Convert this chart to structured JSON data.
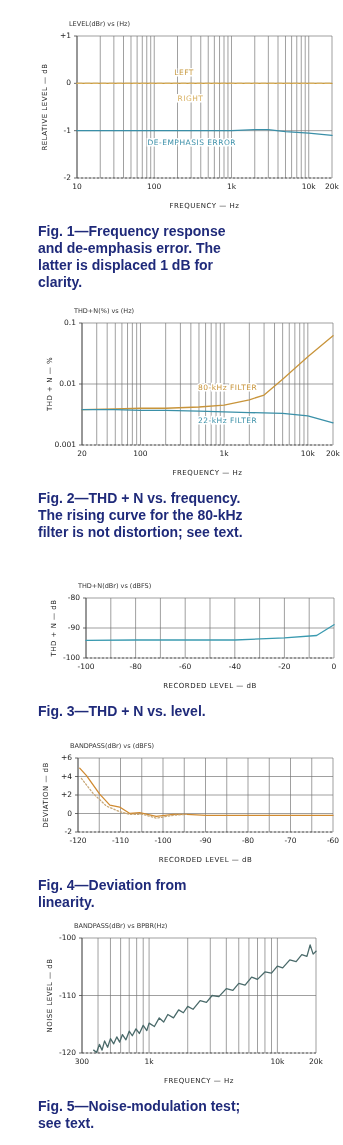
{
  "chart_data": [
    {
      "type": "line",
      "title": "Fig. 1—Frequency response and de-emphasis error. The latter is displaced 1 dB for clarity.",
      "subtitle": "LEVEL(dBr) vs (Hz)",
      "xlabel": "FREQUENCY — Hz",
      "ylabel": "RELATIVE LEVEL — dB",
      "log": "x",
      "grid": true,
      "xlim": [
        10,
        20000
      ],
      "xticks": [
        10,
        100,
        {
          "value": 1000,
          "label": "1k"
        },
        {
          "value": 10000,
          "label": "10k"
        },
        {
          "value": 20000,
          "label": "20k"
        }
      ],
      "ylim": [
        -2,
        1
      ],
      "yticks": [
        -2,
        -1,
        0,
        {
          "value": 1,
          "label": "+1"
        }
      ],
      "series": [
        {
          "name": "LEFT",
          "color": "#c89a40",
          "x": [
            10,
            20000
          ],
          "values": [
            0,
            0
          ]
        },
        {
          "name": "RIGHT",
          "color": "#d8b060",
          "line_style": "dashed",
          "x": [
            10,
            20000
          ],
          "values": [
            0,
            0
          ]
        },
        {
          "name": "DE-EMPHASIS ERROR",
          "color": "#3a8fa8",
          "x": [
            10,
            100,
            1000,
            2000,
            3000,
            5000,
            10000,
            20000
          ],
          "values": [
            -1,
            -1,
            -1,
            -0.98,
            -0.98,
            -1.02,
            -1.05,
            -1.1
          ]
        }
      ]
    },
    {
      "type": "line",
      "title": "Fig. 2—THD + N vs. frequency. The rising curve for the 80-kHz filter is not distortion; see text.",
      "subtitle": "THD+N(%) vs (Hz)",
      "xlabel": "FREQUENCY — Hz",
      "ylabel": "THD + N — %",
      "log": "xy",
      "grid": true,
      "xlim": [
        20,
        20000
      ],
      "xticks": [
        20,
        100,
        {
          "value": 1000,
          "label": "1k"
        },
        {
          "value": 10000,
          "label": "10k"
        },
        {
          "value": 20000,
          "label": "20k"
        }
      ],
      "ylim": [
        0.001,
        0.1
      ],
      "yticks": [
        0.001,
        0.01,
        0.1
      ],
      "series": [
        {
          "name": "80-kHz FILTER",
          "color": "#c8943a",
          "x": [
            20,
            50,
            100,
            200,
            500,
            1000,
            2000,
            3000,
            5000,
            10000,
            20000
          ],
          "values": [
            0.0038,
            0.0039,
            0.004,
            0.004,
            0.0042,
            0.0045,
            0.0055,
            0.0066,
            0.012,
            0.028,
            0.062
          ]
        },
        {
          "name": "22-kHz FILTER",
          "color": "#3a90a8",
          "x": [
            20,
            50,
            100,
            200,
            500,
            1000,
            2000,
            5000,
            10000,
            20000
          ],
          "values": [
            0.0038,
            0.0038,
            0.0037,
            0.0037,
            0.0036,
            0.0035,
            0.0034,
            0.0033,
            0.003,
            0.0023
          ]
        }
      ]
    },
    {
      "type": "line",
      "title": "Fig. 3—THD + N vs. level.",
      "subtitle": "THD+N(dBr) vs (dBFS)",
      "xlabel": "RECORDED LEVEL — dB",
      "ylabel": "THD + N — dB",
      "grid": true,
      "xlim": [
        -100,
        0
      ],
      "xticks": [
        -100,
        -80,
        -60,
        -40,
        -20,
        0
      ],
      "ylim": [
        -100,
        -80
      ],
      "yticks": [
        -100,
        -90,
        -80
      ],
      "series": [
        {
          "color": "#3a9ab0",
          "x": [
            -100,
            -80,
            -60,
            -40,
            -20,
            -7,
            0
          ],
          "values": [
            -94.1,
            -94,
            -94,
            -94,
            -93.3,
            -92.5,
            -88.9
          ]
        }
      ]
    },
    {
      "type": "line",
      "title": "Fig. 4—Deviation from linearity.",
      "subtitle": "BANDPASS(dBr) vs (dBFS)",
      "xlabel": "RECORDED LEVEL — dB",
      "ylabel": "DEVIATION — dB",
      "grid": true,
      "xlim": [
        -120,
        -60
      ],
      "xticks": [
        -120,
        -110,
        -100,
        -90,
        -80,
        -70,
        -60
      ],
      "ylim": [
        -2,
        6
      ],
      "yticks": [
        -2,
        0,
        {
          "value": 2,
          "label": "+2"
        },
        {
          "value": 4,
          "label": "+4"
        },
        {
          "value": 6,
          "label": "+6"
        }
      ],
      "series": [
        {
          "color": "#d08a30",
          "x": [
            -119.6,
            -118,
            -114.9,
            -112.5,
            -110.2,
            -107.8,
            -105.5,
            -101.6,
            -97.6,
            -94.5,
            -89.8,
            -83.5,
            -60
          ],
          "values": [
            4.9,
            4.1,
            2.1,
            0.9,
            0.7,
            0,
            0.1,
            -0.3,
            -0.1,
            -0.1,
            -0.2,
            -0.2,
            -0.2
          ]
        },
        {
          "color": "#c8a878",
          "line_style": "dotted",
          "x": [
            -119.2,
            -116.5,
            -113.3,
            -110.2,
            -107.8,
            -104.7,
            -101.6,
            -97.6,
            -94.5
          ],
          "values": [
            3.8,
            2.2,
            0.8,
            0.2,
            -0.1,
            -0.1,
            -0.5,
            -0.2,
            -0.1
          ]
        }
      ]
    },
    {
      "type": "line",
      "title": "Fig. 5—Noise-modulation test; see text.",
      "subtitle": "BANDPASS(dBr) vs BPBR(Hz)",
      "xlabel": "FREQUENCY — Hz",
      "ylabel": "NOISE LEVEL — dB",
      "log": "x",
      "grid": true,
      "xlim": [
        300,
        20000
      ],
      "xticks": [
        300,
        {
          "value": 1000,
          "label": "1k"
        },
        {
          "value": 10000,
          "label": "10k"
        },
        {
          "value": 20000,
          "label": "20k"
        }
      ],
      "ylim": [
        -120,
        -100
      ],
      "yticks": [
        -120,
        -110,
        -100
      ],
      "series": [
        {
          "color": "#4a6a6a",
          "x": [
            370,
            390,
            410,
            430,
            450,
            475,
            500,
            530,
            560,
            590,
            620,
            660,
            700,
            740,
            790,
            840,
            900,
            960,
            1000,
            1100,
            1200,
            1300,
            1400,
            1550,
            1700,
            1850,
            2000,
            2200,
            2500,
            2800,
            3100,
            3500,
            4000,
            4500,
            5000,
            5600,
            6300,
            7000,
            8000,
            9000,
            10000,
            11000,
            12500,
            14000,
            15500,
            17000,
            18000,
            19000,
            20000
          ],
          "values": [
            -119.5,
            -119.9,
            -118.5,
            -119.5,
            -117.9,
            -119,
            -117.5,
            -118.4,
            -117.2,
            -118.1,
            -116.8,
            -117.7,
            -116.2,
            -117,
            -115.8,
            -116.6,
            -115.2,
            -116.1,
            -114.8,
            -115.4,
            -113.9,
            -114.6,
            -113.3,
            -113.9,
            -112.5,
            -113,
            -111.9,
            -112.4,
            -110.9,
            -111.2,
            -110,
            -110.2,
            -108.8,
            -109.1,
            -107.9,
            -108.2,
            -106.8,
            -107.2,
            -105.9,
            -106.1,
            -104.9,
            -105.2,
            -103.8,
            -104.1,
            -102.9,
            -103.2,
            -101.2,
            -102.8,
            -102.3
          ]
        }
      ]
    }
  ]
}
